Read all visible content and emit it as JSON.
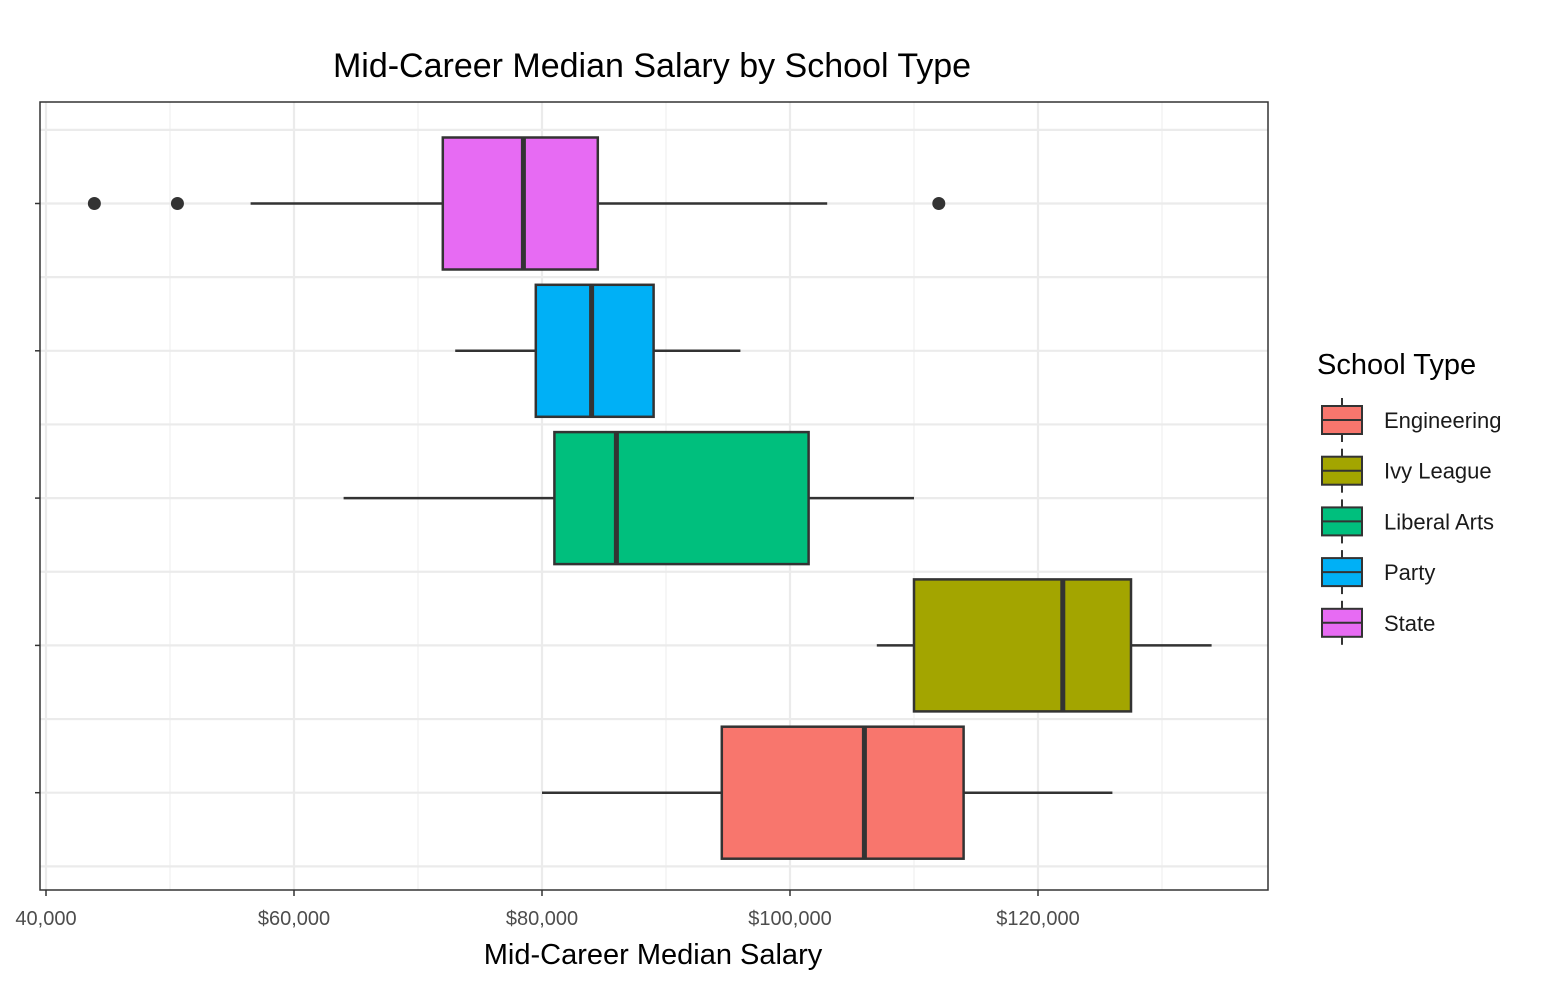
{
  "chart_data": {
    "type": "boxplot",
    "orientation": "horizontal",
    "title": "Mid-Career Median Salary by School Type",
    "xlabel": "Mid-Career Median Salary",
    "ylabel": "",
    "xlim": [
      40000,
      137500
    ],
    "x_ticks": [
      40000,
      60000,
      80000,
      100000,
      120000
    ],
    "x_tick_labels": [
      "40,000",
      "$60,000",
      "$80,000",
      "$100,000",
      "$120,000"
    ],
    "grid": true,
    "legend_position": "right",
    "legend_title": "School Type",
    "series": [
      {
        "name": "Engineering",
        "color": "#F8766D",
        "whisker_low": 80000,
        "q1": 94500,
        "median": 106000,
        "q3": 114000,
        "whisker_high": 126000,
        "outliers": []
      },
      {
        "name": "Ivy League",
        "color": "#A3A500",
        "whisker_low": 107000,
        "q1": 110000,
        "median": 122000,
        "q3": 127500,
        "whisker_high": 134000,
        "outliers": []
      },
      {
        "name": "Liberal Arts",
        "color": "#00BF7D",
        "whisker_low": 64000,
        "q1": 81000,
        "median": 86000,
        "q3": 101500,
        "whisker_high": 110000,
        "outliers": []
      },
      {
        "name": "Party",
        "color": "#00B0F6",
        "whisker_low": 73000,
        "q1": 79500,
        "median": 84000,
        "q3": 89000,
        "whisker_high": 96000,
        "outliers": []
      },
      {
        "name": "State",
        "color": "#E76BF3",
        "whisker_low": 56500,
        "q1": 72000,
        "median": 78500,
        "q3": 84500,
        "whisker_high": 103000,
        "outliers": [
          43900,
          50600,
          112000
        ]
      }
    ]
  }
}
